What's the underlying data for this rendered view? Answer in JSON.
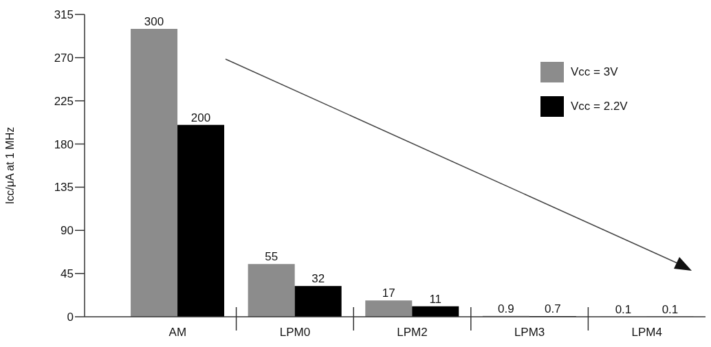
{
  "chart_data": {
    "type": "bar",
    "ylabel": "Icc/μA at 1 MHz",
    "categories": [
      "AM",
      "LPM0",
      "LPM2",
      "LPM3",
      "LPM4"
    ],
    "series": [
      {
        "name": "Vcc = 3V",
        "color": "#8c8c8c",
        "values": [
          300,
          55,
          17,
          0.9,
          0.1
        ]
      },
      {
        "name": "Vcc = 2.2V",
        "color": "#000000",
        "values": [
          200,
          32,
          11,
          0.7,
          0.1
        ]
      }
    ],
    "ylim": [
      0,
      315
    ],
    "yticks": [
      0,
      45,
      90,
      135,
      180,
      225,
      270,
      315
    ],
    "data_labels": true,
    "grid": false,
    "legend": "top right"
  }
}
